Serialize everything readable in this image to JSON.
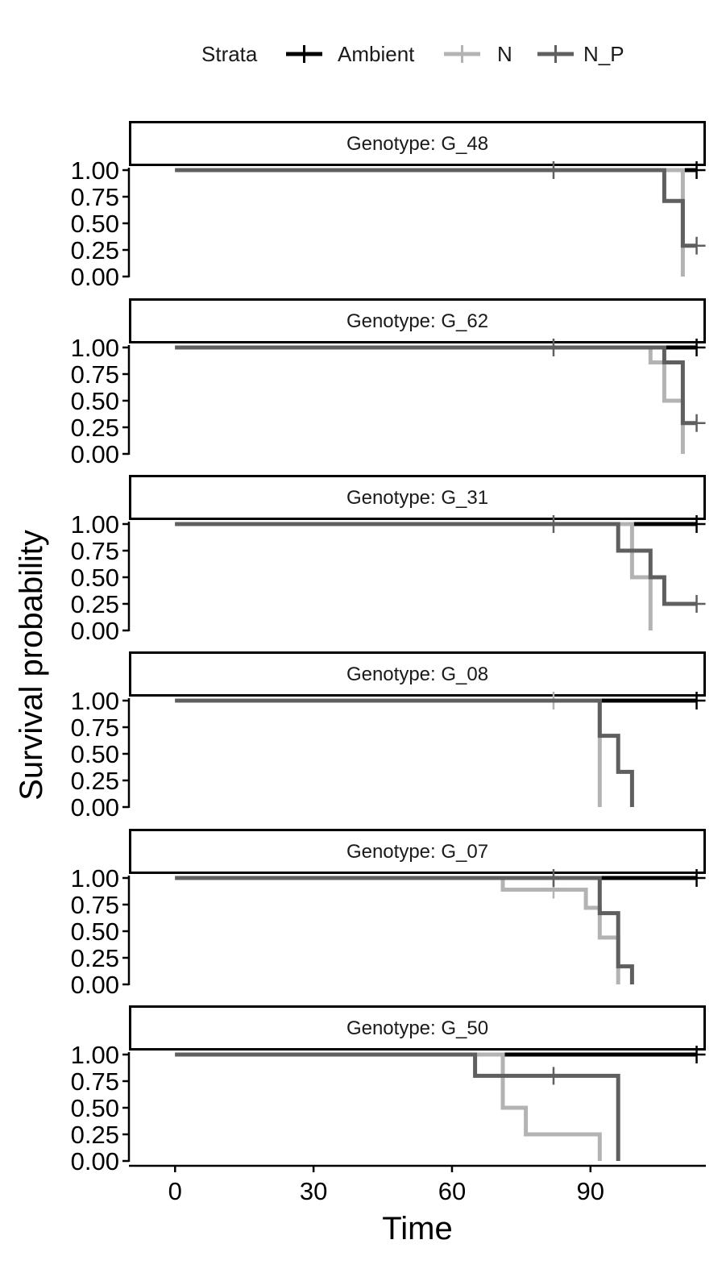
{
  "chart_data": {
    "type": "line",
    "subtype": "kaplan-meier-step",
    "xlabel": "Time",
    "ylabel": "Survival probability",
    "xlim": [
      -10,
      115
    ],
    "ylim": [
      0,
      1
    ],
    "x_ticks": [
      0,
      30,
      60,
      90
    ],
    "y_ticks": [
      0,
      0.25,
      0.5,
      0.75,
      1
    ],
    "y_tick_labels": [
      "0.00",
      "0.25",
      "0.50",
      "0.75",
      "1.00"
    ],
    "legend": {
      "title": "Strata",
      "position": "top",
      "entries": [
        "Ambient",
        "N",
        "N_P"
      ]
    },
    "series_colors": {
      "Ambient": "#000000",
      "N": "#b3b3b3",
      "N_P": "#5f5f5f"
    },
    "grid": false,
    "panels": [
      {
        "title": "Genotype: G_48",
        "series": [
          {
            "name": "Ambient",
            "x": [
              0,
              113
            ],
            "y": [
              1,
              1
            ],
            "censor": [
              [
                113,
                1
              ]
            ]
          },
          {
            "name": "N",
            "x": [
              0,
              110
            ],
            "y": [
              1,
              0
            ],
            "censor": []
          },
          {
            "name": "N_P",
            "x": [
              0,
              106,
              110,
              113
            ],
            "y": [
              1,
              0.71,
              0.29,
              0.29
            ],
            "censor": [
              [
                82,
                1
              ],
              [
                113,
                0.29
              ]
            ]
          }
        ]
      },
      {
        "title": "Genotype: G_62",
        "series": [
          {
            "name": "Ambient",
            "x": [
              0,
              113
            ],
            "y": [
              1,
              1
            ],
            "censor": [
              [
                113,
                1
              ]
            ]
          },
          {
            "name": "N",
            "x": [
              0,
              103,
              106,
              110
            ],
            "y": [
              1,
              0.86,
              0.5,
              0
            ],
            "censor": []
          },
          {
            "name": "N_P",
            "x": [
              0,
              106,
              110,
              113
            ],
            "y": [
              1,
              0.86,
              0.29,
              0.29
            ],
            "censor": [
              [
                82,
                1
              ],
              [
                113,
                0.29
              ]
            ]
          }
        ]
      },
      {
        "title": "Genotype: G_31",
        "series": [
          {
            "name": "Ambient",
            "x": [
              0,
              113
            ],
            "y": [
              1,
              1
            ],
            "censor": [
              [
                113,
                1
              ]
            ]
          },
          {
            "name": "N",
            "x": [
              0,
              99,
              103
            ],
            "y": [
              1,
              0.5,
              0
            ],
            "censor": []
          },
          {
            "name": "N_P",
            "x": [
              0,
              96,
              103,
              106,
              113
            ],
            "y": [
              1,
              0.75,
              0.5,
              0.25,
              0.25
            ],
            "censor": [
              [
                82,
                1
              ],
              [
                113,
                0.25
              ]
            ]
          }
        ]
      },
      {
        "title": "Genotype: G_08",
        "series": [
          {
            "name": "Ambient",
            "x": [
              0,
              113
            ],
            "y": [
              1,
              1
            ],
            "censor": [
              [
                113,
                1
              ]
            ]
          },
          {
            "name": "N",
            "x": [
              0,
              92
            ],
            "y": [
              1,
              0
            ],
            "censor": [
              [
                82,
                1
              ]
            ]
          },
          {
            "name": "N_P",
            "x": [
              0,
              92,
              96,
              99
            ],
            "y": [
              1,
              0.67,
              0.33,
              0
            ],
            "censor": []
          }
        ]
      },
      {
        "title": "Genotype: G_07",
        "series": [
          {
            "name": "Ambient",
            "x": [
              0,
              113
            ],
            "y": [
              1,
              1
            ],
            "censor": [
              [
                113,
                1
              ]
            ]
          },
          {
            "name": "N",
            "x": [
              0,
              71,
              89,
              92,
              96
            ],
            "y": [
              1,
              0.89,
              0.72,
              0.44,
              0
            ],
            "censor": [
              [
                82,
                0.89
              ]
            ]
          },
          {
            "name": "N_P",
            "x": [
              0,
              92,
              96,
              99
            ],
            "y": [
              1,
              0.67,
              0.17,
              0
            ],
            "censor": [
              [
                82,
                1
              ]
            ]
          }
        ]
      },
      {
        "title": "Genotype: G_50",
        "series": [
          {
            "name": "Ambient",
            "x": [
              0,
              113
            ],
            "y": [
              1,
              1
            ],
            "censor": [
              [
                113,
                1
              ]
            ]
          },
          {
            "name": "N",
            "x": [
              0,
              71,
              76,
              92
            ],
            "y": [
              1,
              0.5,
              0.25,
              0
            ],
            "censor": []
          },
          {
            "name": "N_P",
            "x": [
              0,
              65,
              96
            ],
            "y": [
              1,
              0.8,
              0
            ],
            "censor": [
              [
                82,
                0.8
              ]
            ]
          }
        ]
      }
    ]
  }
}
